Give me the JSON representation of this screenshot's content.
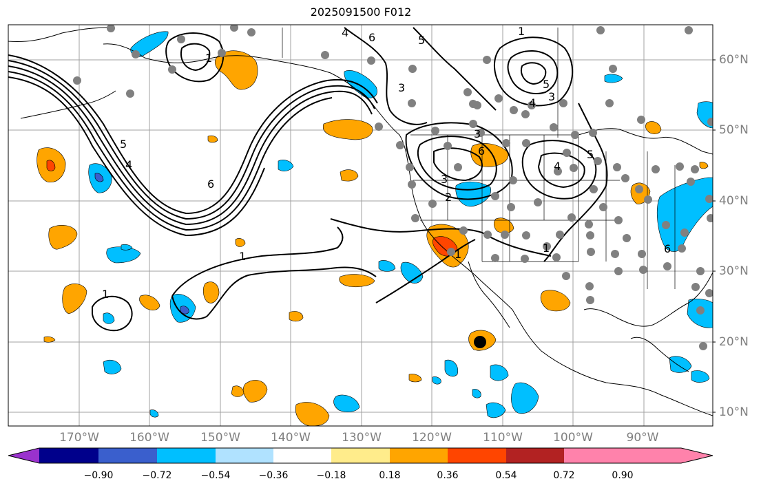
{
  "title": "2025091500 F012",
  "lon_labels": [
    "170°W",
    "160°W",
    "150°W",
    "140°W",
    "130°W",
    "120°W",
    "110°W",
    "100°W",
    "90°W"
  ],
  "lat_labels": [
    "60°N",
    "50°N",
    "40°N",
    "30°N",
    "20°N",
    "10°N"
  ],
  "colorbar": {
    "colors": [
      "#9a32cd",
      "#00008b",
      "#3a5fcd",
      "#00bfff",
      "#b0e2ff",
      "#ffffff",
      "#ffec8b",
      "#ffa500",
      "#ff4500",
      "#b22222",
      "#ff82ab"
    ],
    "tick_labels": [
      "−0.90",
      "−0.72",
      "−0.54",
      "−0.36",
      "−0.18",
      "0.18",
      "0.36",
      "0.54",
      "0.72",
      "0.90"
    ]
  },
  "contour_labels": [
    "6",
    "4",
    "5",
    "1",
    "1",
    "1",
    "3",
    "4",
    "5",
    "6",
    "1",
    "3",
    "4",
    "6",
    "5",
    "4",
    "3",
    "2",
    "1",
    "3",
    "1",
    "6",
    "5"
  ],
  "colors": {
    "land_line": "#000000",
    "grid": "#a0a0a0",
    "station": "#808080"
  }
}
